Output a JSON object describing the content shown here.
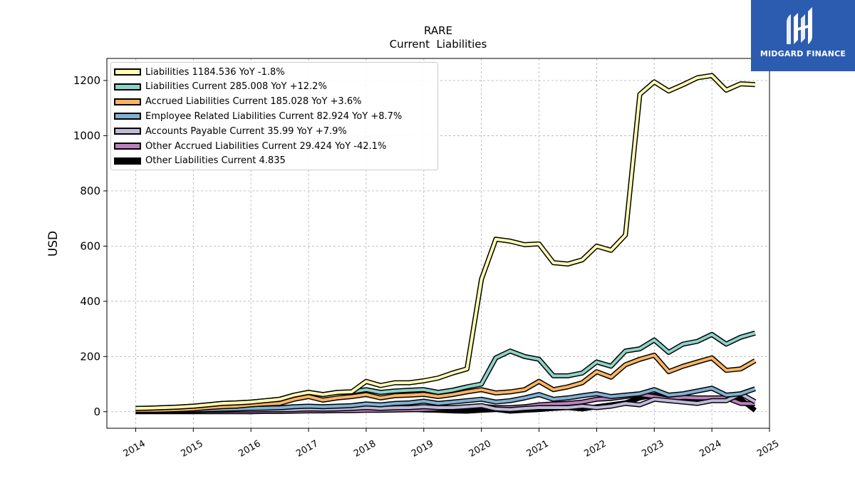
{
  "logo": {
    "brand": "MIDGARD FINANCE"
  },
  "chart_data": {
    "type": "line",
    "title": "RARE",
    "subtitle": "Current  Liabilities",
    "ylabel": "USD",
    "xlabel": "",
    "xlim": [
      2013.5,
      2025.0
    ],
    "ylim": [
      -60,
      1280
    ],
    "yticks": [
      0,
      200,
      400,
      600,
      800,
      1000,
      1200
    ],
    "xticks": [
      2014,
      2015,
      2016,
      2017,
      2018,
      2019,
      2020,
      2021,
      2022,
      2023,
      2024,
      2025
    ],
    "grid": true,
    "legend_position": "top-left",
    "x": [
      2014.0,
      2014.25,
      2014.5,
      2014.75,
      2015.0,
      2015.25,
      2015.5,
      2015.75,
      2016.0,
      2016.25,
      2016.5,
      2016.75,
      2017.0,
      2017.25,
      2017.5,
      2017.75,
      2018.0,
      2018.25,
      2018.5,
      2018.75,
      2019.0,
      2019.25,
      2019.5,
      2019.75,
      2020.0,
      2020.25,
      2020.5,
      2020.75,
      2021.0,
      2021.25,
      2021.5,
      2021.75,
      2022.0,
      2022.25,
      2022.5,
      2022.75,
      2023.0,
      2023.25,
      2023.5,
      2023.75,
      2024.0,
      2024.25,
      2024.5,
      2024.75
    ],
    "series": [
      {
        "name": "Liabilities",
        "legend": "Liabilities  1184.536 YoY -1.8%",
        "color": "#ffffb3",
        "values": [
          12,
          13,
          15,
          17,
          20,
          25,
          30,
          32,
          35,
          40,
          45,
          60,
          70,
          62,
          70,
          72,
          110,
          95,
          105,
          105,
          112,
          122,
          140,
          155,
          480,
          625,
          618,
          605,
          608,
          540,
          535,
          550,
          600,
          585,
          640,
          1150,
          1195,
          1162,
          1185,
          1210,
          1218,
          1165,
          1188,
          1185
        ]
      },
      {
        "name": "Liabilities Current",
        "legend": "Liabilities Current  285.008 YoY +12.2%",
        "color": "#8dd3c7",
        "values": [
          12,
          13,
          15,
          17,
          20,
          25,
          30,
          32,
          35,
          40,
          45,
          60,
          70,
          62,
          70,
          72,
          80,
          70,
          75,
          78,
          80,
          70,
          78,
          90,
          100,
          195,
          220,
          200,
          190,
          130,
          130,
          140,
          180,
          165,
          220,
          228,
          260,
          215,
          245,
          255,
          280,
          245,
          270,
          285
        ]
      },
      {
        "name": "Accrued Liabilities Current",
        "legend": "Accrued Liabilities Current  185.028 YoY +3.6%",
        "color": "#fdb462",
        "values": [
          5,
          5,
          6,
          8,
          10,
          15,
          18,
          20,
          25,
          28,
          30,
          45,
          55,
          42,
          50,
          55,
          62,
          50,
          58,
          60,
          63,
          55,
          62,
          72,
          80,
          68,
          72,
          80,
          110,
          80,
          90,
          105,
          145,
          125,
          170,
          190,
          205,
          145,
          165,
          180,
          195,
          150,
          155,
          185
        ]
      },
      {
        "name": "Employee Related Liabilities Current",
        "legend": "Employee Related Liabilities Current  82.924 YoY +8.7%",
        "color": "#80b1d3",
        "values": [
          3,
          3,
          4,
          5,
          6,
          8,
          9,
          10,
          12,
          13,
          14,
          18,
          20,
          18,
          20,
          22,
          28,
          25,
          30,
          32,
          38,
          30,
          35,
          40,
          45,
          35,
          40,
          50,
          62,
          45,
          50,
          58,
          65,
          55,
          60,
          65,
          80,
          60,
          65,
          75,
          85,
          60,
          65,
          83
        ]
      },
      {
        "name": "Accounts Payable Current",
        "legend": "Accounts Payable Current  35.99 YoY +7.9%",
        "color": "#bebada",
        "values": [
          2,
          2,
          3,
          3,
          4,
          5,
          5,
          6,
          6,
          7,
          7,
          8,
          10,
          9,
          10,
          12,
          15,
          12,
          14,
          15,
          18,
          15,
          15,
          18,
          22,
          10,
          8,
          12,
          15,
          15,
          15,
          20,
          15,
          20,
          30,
          25,
          45,
          40,
          35,
          30,
          40,
          40,
          65,
          36
        ]
      },
      {
        "name": "Other Accrued Liabilities Current",
        "legend": "Other Accrued Liabilities Current  29.424 YoY -42.1%",
        "color": "#bc80bd",
        "values": [
          0,
          0,
          0,
          0,
          0,
          0,
          0,
          0,
          0,
          1,
          1,
          2,
          3,
          3,
          4,
          4,
          5,
          5,
          6,
          7,
          8,
          10,
          12,
          15,
          20,
          15,
          15,
          18,
          25,
          28,
          30,
          35,
          45,
          48,
          55,
          62,
          55,
          45,
          52,
          50,
          50,
          50,
          30,
          29
        ]
      },
      {
        "name": "Other Liabilities Current",
        "legend": "Other Liabilities Current  4.835",
        "color": "#000000",
        "values": [
          10,
          9,
          8,
          7,
          6,
          5,
          4,
          3,
          0,
          5,
          6,
          8,
          10,
          12,
          15,
          15,
          10,
          12,
          10,
          10,
          6,
          5,
          3,
          2,
          5,
          8,
          2,
          5,
          8,
          12,
          15,
          10,
          18,
          25,
          32,
          50,
          60,
          45,
          50,
          48,
          45,
          50,
          45,
          4.835
        ]
      }
    ]
  }
}
